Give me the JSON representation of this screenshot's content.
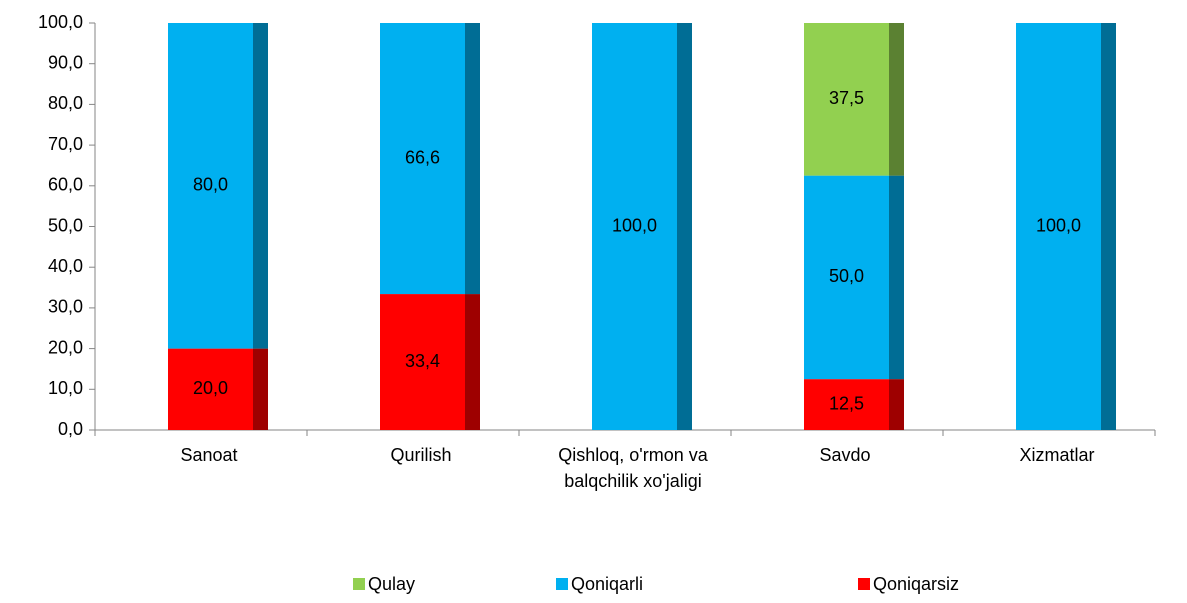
{
  "chart_data": {
    "type": "stacked-bar",
    "categories": [
      "Sanoat",
      "Qurilish",
      "Qishloq, o'rmon va balqchilik xo'jaligi",
      "Savdo",
      "Xizmatlar"
    ],
    "series": [
      {
        "name": "Qulay",
        "color": "#92d050",
        "values": [
          null,
          null,
          null,
          37.5,
          null
        ],
        "value_labels": [
          null,
          null,
          null,
          "37,5",
          null
        ]
      },
      {
        "name": "Qoniqarli",
        "color": "#00b0f0",
        "values": [
          80,
          66.6,
          100,
          50,
          100
        ],
        "value_labels": [
          "80,0",
          "66,6",
          "100,0",
          "50,0",
          "100,0"
        ]
      },
      {
        "name": "Qoniqarsiz",
        "color": "#ff0000",
        "values": [
          20,
          33.4,
          null,
          12.5,
          null
        ],
        "value_labels": [
          "20,0",
          "33,4",
          null,
          "12,5",
          null
        ]
      }
    ],
    "ylim": [
      0,
      100
    ],
    "yticks": [
      {
        "value": 0,
        "label": "0,0"
      },
      {
        "value": 10,
        "label": "10,0"
      },
      {
        "value": 20,
        "label": "20,0"
      },
      {
        "value": 30,
        "label": "30,0"
      },
      {
        "value": 40,
        "label": "40,0"
      },
      {
        "value": 50,
        "label": "50,0"
      },
      {
        "value": 60,
        "label": "60,0"
      },
      {
        "value": 70,
        "label": "70,0"
      },
      {
        "value": 80,
        "label": "80,0"
      },
      {
        "value": 90,
        "label": "90,0"
      },
      {
        "value": 100,
        "label": "100,0"
      }
    ],
    "legend": "bottom"
  }
}
